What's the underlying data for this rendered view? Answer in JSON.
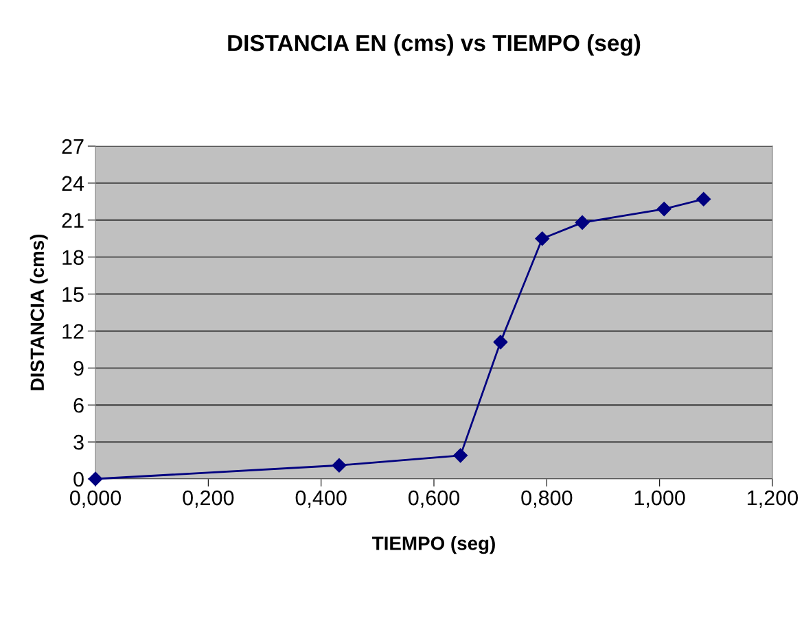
{
  "chart_data": {
    "type": "line",
    "title": "DISTANCIA EN (cms) vs TIEMPO (seg)",
    "xlabel": "TIEMPO (seg)",
    "ylabel": "DISTANCIA (cms)",
    "x": [
      0,
      0.432,
      0.647,
      0.718,
      0.792,
      0.863,
      1.008,
      1.078
    ],
    "series": [
      {
        "color": "#000080",
        "values": [
          0,
          1.1,
          1.9,
          11.1,
          19.5,
          20.8,
          21.9,
          22.7
        ]
      }
    ],
    "xlim": [
      0,
      1.2
    ],
    "xticks": [
      {
        "value": 0,
        "label": "0,000"
      },
      {
        "value": 0.2,
        "label": "0,200"
      },
      {
        "value": 0.4,
        "label": "0,400"
      },
      {
        "value": 0.6,
        "label": "0,600"
      },
      {
        "value": 0.8,
        "label": "0,800"
      },
      {
        "value": 1.0,
        "label": "1,000"
      },
      {
        "value": 1.2,
        "label": "1,200"
      }
    ],
    "ylim": [
      0,
      27
    ],
    "yticks": [
      0,
      3,
      6,
      9,
      12,
      15,
      18,
      21,
      24,
      27
    ],
    "grid": "y",
    "marker": "diamond",
    "line_style": "solid",
    "legend": false
  }
}
